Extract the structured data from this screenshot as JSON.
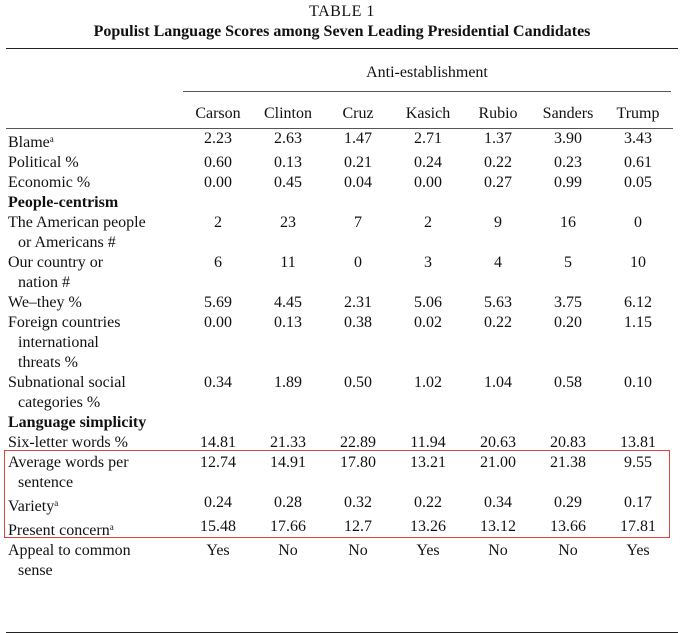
{
  "caption": {
    "number": "TABLE 1",
    "title": "Populist Language Scores among Seven Leading Presidential Candidates"
  },
  "group_header": "Anti-establishment",
  "candidates": [
    "Carson",
    "Clinton",
    "Cruz",
    "Kasich",
    "Rubio",
    "Sanders",
    "Trump"
  ],
  "rows": [
    {
      "label": "Blame",
      "mark": "a",
      "values": [
        "2.23",
        "2.63",
        "1.47",
        "2.71",
        "1.37",
        "3.90",
        "3.43"
      ]
    },
    {
      "label": "Political %",
      "values": [
        "0.60",
        "0.13",
        "0.21",
        "0.24",
        "0.22",
        "0.23",
        "0.61"
      ]
    },
    {
      "label": "Economic %",
      "values": [
        "0.00",
        "0.45",
        "0.04",
        "0.00",
        "0.27",
        "0.99",
        "0.05"
      ]
    },
    {
      "label": "People-centrism",
      "section": true
    },
    {
      "label": "The American people",
      "label2": "or Americans #",
      "values": [
        "2",
        "23",
        "7",
        "2",
        "9",
        "16",
        "0"
      ]
    },
    {
      "label": "Our country or",
      "label2": "nation #",
      "values": [
        "6",
        "11",
        "0",
        "3",
        "4",
        "5",
        "10"
      ]
    },
    {
      "label": "We–they %",
      "values": [
        "5.69",
        "4.45",
        "2.31",
        "5.06",
        "5.63",
        "3.75",
        "6.12"
      ]
    },
    {
      "label": "Foreign countries",
      "label2": "international",
      "label3": "threats %",
      "values": [
        "0.00",
        "0.13",
        "0.38",
        "0.02",
        "0.22",
        "0.20",
        "1.15"
      ]
    },
    {
      "label": "Subnational social",
      "label2": "categories %",
      "values": [
        "0.34",
        "1.89",
        "0.50",
        "1.02",
        "1.04",
        "0.58",
        "0.10"
      ]
    },
    {
      "label": "Language simplicity",
      "section": true
    },
    {
      "label": "Six-letter words %",
      "values": [
        "14.81",
        "21.33",
        "22.89",
        "11.94",
        "20.63",
        "20.83",
        "13.81"
      ]
    },
    {
      "label": "Average words per",
      "label2": "sentence",
      "values": [
        "12.74",
        "14.91",
        "17.80",
        "13.21",
        "21.00",
        "21.38",
        "9.55"
      ]
    },
    {
      "label": "Variety",
      "mark": "a",
      "values": [
        "0.24",
        "0.28",
        "0.32",
        "0.22",
        "0.34",
        "0.29",
        "0.17"
      ]
    },
    {
      "label": "Present concern",
      "mark": "a",
      "values": [
        "15.48",
        "17.66",
        "12.7",
        "13.26",
        "13.12",
        "13.66",
        "17.81"
      ]
    },
    {
      "label": "Appeal to common",
      "label2": "sense",
      "values": [
        "Yes",
        "No",
        "No",
        "Yes",
        "No",
        "No",
        "Yes"
      ]
    }
  ],
  "highlight_color": "#d9473a"
}
